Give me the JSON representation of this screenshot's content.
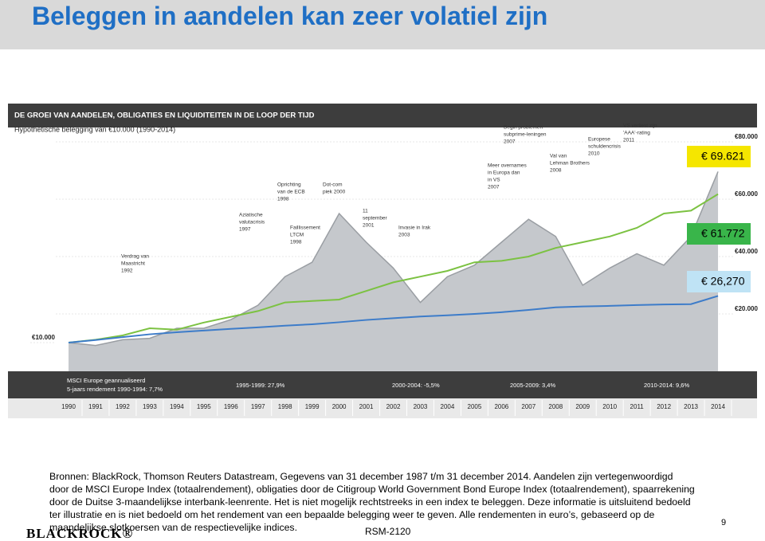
{
  "slide_title": "Beleggen in aandelen kan zeer volatiel zijn",
  "chart_data": {
    "type": "area",
    "title": "DE GROEI VAN AANDELEN, OBLIGATIES EN LIQUIDITEITEN IN DE LOOP DER TIJD",
    "subtitle": "Hypothetische belegging van €10.000 (1990-2014)",
    "categories": [
      "1990",
      "1991",
      "1992",
      "1993",
      "1994",
      "1995",
      "1996",
      "1997",
      "1998",
      "1999",
      "2000",
      "2001",
      "2002",
      "2003",
      "2004",
      "2005",
      "2006",
      "2007",
      "2008",
      "2009",
      "2010",
      "2011",
      "2012",
      "2013",
      "2014"
    ],
    "series": [
      {
        "color": "#9a9ea3",
        "fill": "#c5c8cc",
        "values": [
          10000,
          9000,
          11000,
          11500,
          15000,
          15000,
          18000,
          23000,
          33000,
          38000,
          55000,
          45000,
          36000,
          24000,
          33000,
          37000,
          45000,
          53000,
          47000,
          30000,
          36000,
          41000,
          37000,
          47000,
          69621
        ],
        "value_labels": [
          null,
          null,
          null,
          null,
          null,
          null,
          null,
          null,
          null,
          null,
          null,
          null,
          null,
          null,
          null,
          null,
          null,
          null,
          null,
          null,
          null,
          null,
          null,
          null,
          "€ 69.621"
        ],
        "label_color": "#f5e600"
      },
      {
        "color": "#7cc242",
        "values": [
          10000,
          11000,
          12500,
          15000,
          14500,
          17000,
          19000,
          21000,
          24000,
          24500,
          25000,
          28000,
          31000,
          33000,
          35000,
          38000,
          38500,
          40000,
          43000,
          45000,
          47000,
          50000,
          55000,
          56000,
          61772
        ],
        "value_labels": [
          null,
          null,
          null,
          null,
          null,
          null,
          null,
          null,
          null,
          null,
          null,
          null,
          null,
          null,
          null,
          null,
          null,
          null,
          null,
          null,
          null,
          null,
          null,
          null,
          "€ 61.772"
        ],
        "label_color": "#39b54a"
      },
      {
        "color": "#3d7cc9",
        "values": [
          10000,
          10900,
          11900,
          12900,
          13600,
          14200,
          14800,
          15300,
          15900,
          16400,
          17100,
          17900,
          18500,
          19100,
          19500,
          20000,
          20600,
          21400,
          22300,
          22600,
          22800,
          23100,
          23300,
          23400,
          26270
        ],
        "value_labels": [
          null,
          null,
          null,
          null,
          null,
          null,
          null,
          null,
          null,
          null,
          null,
          null,
          null,
          null,
          null,
          null,
          null,
          null,
          null,
          null,
          null,
          null,
          null,
          null,
          "€ 26,270"
        ],
        "label_color": "#bfe3f5"
      }
    ],
    "ylim": [
      0,
      90000
    ],
    "yticks": [
      {
        "value": 10000,
        "label": "€10.000"
      },
      {
        "value": 20000,
        "label": "€20.000"
      },
      {
        "value": 40000,
        "label": "€40.000"
      },
      {
        "value": 60000,
        "label": "€60.000"
      },
      {
        "value": 80000,
        "label": "€80.000"
      }
    ],
    "annotations": [
      {
        "lines": [
          "Verdrag van",
          "Maastricht",
          "1992"
        ]
      },
      {
        "lines": [
          "Aziatische",
          "valutacrisis",
          "1997"
        ]
      },
      {
        "lines": [
          "Oprichting",
          "van de ECB",
          "1998"
        ]
      },
      {
        "lines": [
          "Faillissement",
          "LTCM",
          "1998"
        ]
      },
      {
        "lines": [
          "Dot-com",
          "piek 2000"
        ]
      },
      {
        "lines": [
          "11",
          "september",
          "2001"
        ]
      },
      {
        "lines": [
          "Invasie in Irak",
          "2003"
        ]
      },
      {
        "lines": [
          "Meer overnames",
          "in Europa dan",
          "in VS",
          "2007"
        ]
      },
      {
        "lines": [
          "Begin problemen",
          "subprime-leningen",
          "2007"
        ]
      },
      {
        "lines": [
          "Val van",
          "Lehman Brothers",
          "2008"
        ]
      },
      {
        "lines": [
          "Europese",
          "schuldencrisis",
          "2010"
        ]
      },
      {
        "lines": [
          "VS verliest zijn",
          "'AAA'-rating",
          "2011"
        ]
      }
    ],
    "band_title": [
      "MSCI Europe geannualiseerd",
      "5-jaars rendement 1990-1994: 7,7%"
    ],
    "band_periods": [
      "1995-1999: 27,9%",
      "2000-2004: -5,5%",
      "2005-2009: 3,4%",
      "2010-2014: 9,6%"
    ]
  },
  "source_note": "Bronnen: BlackRock, Thomson Reuters Datastream, Gegevens van 31 december 1987 t/m 31 december 2014. Aandelen zijn vertegenwoordigd door de MSCI Europe Index (totaalrendement), obligaties door de Citigroup World Government Bond Europe Index (totaalrendement), spaarrekening door de Duitse 3-maandelijkse interbank-leenrente. Het is niet mogelijk rechtstreeks in een index te beleggen. Deze informatie is uitsluitend bedoeld ter illustratie en is niet bedoeld om het rendement van een bepaalde belegging weer te geven. Alle rendementen in euro’s, gebaseerd op de maandelijkse slotkoersen van de respectievelijke indices.",
  "footer": {
    "logo": "BLACKROCK®",
    "code": "RSM-2120",
    "page": "9"
  }
}
